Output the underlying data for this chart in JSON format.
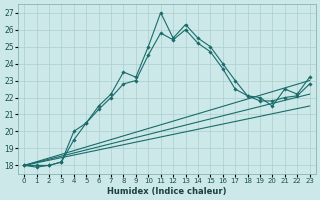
{
  "xlabel": "Humidex (Indice chaleur)",
  "bg_color": "#cce8e8",
  "grid_color": "#aacfcf",
  "line_color": "#1a6b6b",
  "xlim": [
    -0.5,
    23.5
  ],
  "ylim": [
    17.5,
    27.5
  ],
  "xticks": [
    0,
    1,
    2,
    3,
    4,
    5,
    6,
    7,
    8,
    9,
    10,
    11,
    12,
    13,
    14,
    15,
    16,
    17,
    18,
    19,
    20,
    21,
    22,
    23
  ],
  "yticks": [
    18,
    19,
    20,
    21,
    22,
    23,
    24,
    25,
    26,
    27
  ],
  "series": [
    {
      "x": [
        0,
        1,
        2,
        3,
        4,
        5,
        6,
        7,
        8,
        9,
        10,
        11,
        12,
        13,
        14,
        15,
        16,
        17,
        18,
        19,
        20,
        21,
        22,
        23
      ],
      "y": [
        18,
        17.9,
        18,
        18.2,
        19.5,
        20.5,
        21.5,
        22.2,
        23.5,
        23.2,
        25.0,
        27.0,
        25.5,
        26.3,
        25.5,
        25.0,
        24.0,
        23.0,
        22.1,
        22.0,
        21.5,
        22.5,
        22.2,
        23.2
      ],
      "marker": true
    },
    {
      "x": [
        0,
        1,
        2,
        3,
        4,
        5,
        6,
        7,
        8,
        9,
        10,
        11,
        12,
        13,
        14,
        15,
        16,
        17,
        18,
        19,
        20,
        21,
        22,
        23
      ],
      "y": [
        18,
        18,
        18,
        18.2,
        20.0,
        20.5,
        21.3,
        22.0,
        22.8,
        23.0,
        24.5,
        25.8,
        25.4,
        26.0,
        25.2,
        24.7,
        23.7,
        22.5,
        22.1,
        21.8,
        21.8,
        22.0,
        22.1,
        22.8
      ],
      "marker": true
    },
    {
      "x": [
        0,
        23
      ],
      "y": [
        18,
        23.0
      ],
      "marker": false
    },
    {
      "x": [
        0,
        23
      ],
      "y": [
        18,
        22.2
      ],
      "marker": false
    },
    {
      "x": [
        0,
        23
      ],
      "y": [
        18,
        21.5
      ],
      "marker": false
    }
  ]
}
